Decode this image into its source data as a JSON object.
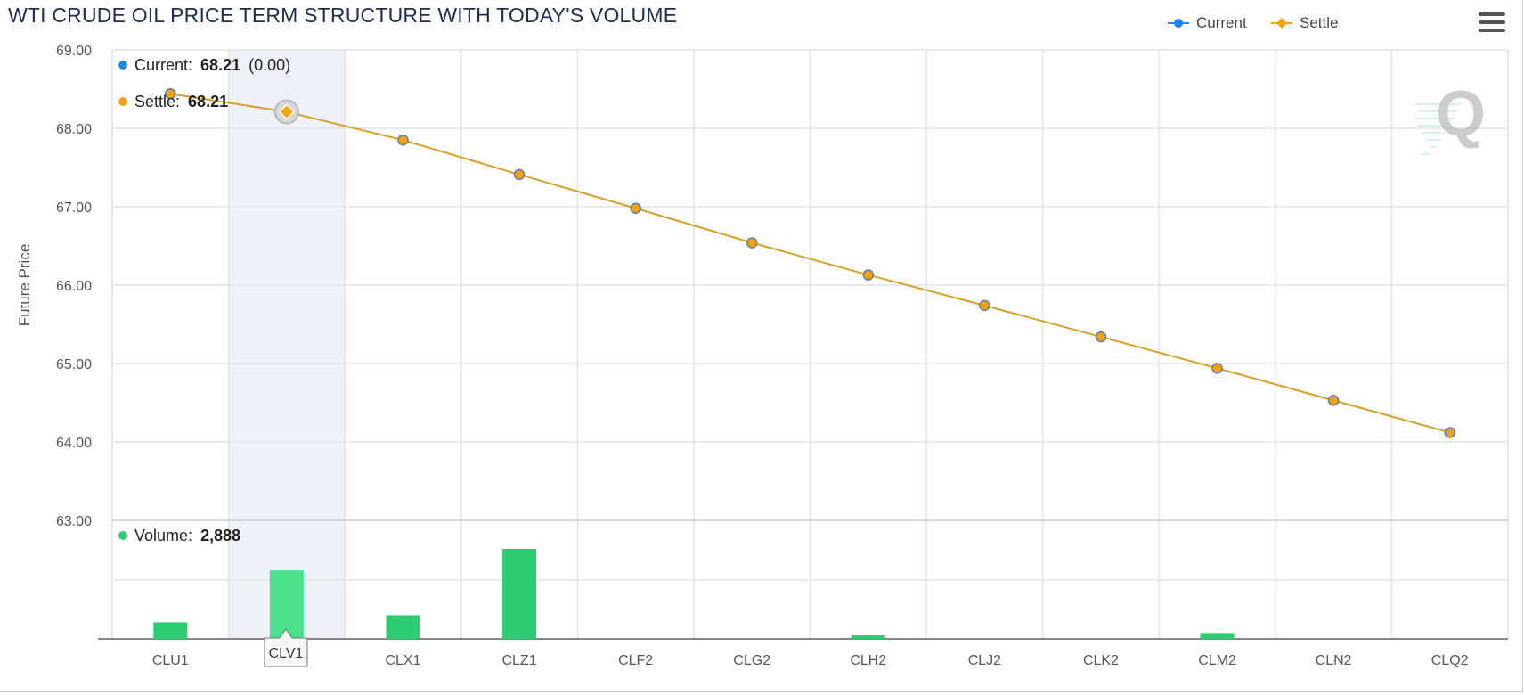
{
  "title": "WTI CRUDE OIL PRICE TERM STRUCTURE WITH TODAY'S VOLUME",
  "legend": [
    {
      "name": "Current",
      "color": "#1e88e5",
      "symbol": "circle"
    },
    {
      "name": "Settle",
      "color": "#f5a30a",
      "symbol": "diamond"
    }
  ],
  "menu_icon": "hamburger-icon",
  "watermark": "Q",
  "colors": {
    "line": "#d4a02a",
    "marker_fill": "#f5a30a",
    "marker_stroke": "#5b7fa6",
    "volume": "#2ecc71",
    "volume_hover": "#4be08c",
    "highlight": "#eef2f8"
  },
  "tooltip": {
    "current_label": "Current:",
    "current_value": "68.21",
    "current_change": "(0.00)",
    "settle_label": "Settle:",
    "settle_value": "68.21",
    "volume_label": "Volume:",
    "volume_value": "2,888",
    "category_label": "CLV1"
  },
  "chart_data": {
    "type": "line",
    "x_categories": [
      "CLU1",
      "CLV1",
      "CLX1",
      "CLZ1",
      "CLF2",
      "CLG2",
      "CLH2",
      "CLJ2",
      "CLK2",
      "CLM2",
      "CLN2",
      "CLQ2"
    ],
    "ylabel": "Future Price",
    "ylim": [
      63,
      69
    ],
    "y_ticks": [
      "69.00",
      "68.00",
      "67.00",
      "66.00",
      "65.00",
      "64.00",
      "63.00"
    ],
    "grid": true,
    "legend_position": "top-right",
    "highlighted_category": "CLV1",
    "series": [
      {
        "name": "Settle",
        "values": [
          68.44,
          68.21,
          67.85,
          67.41,
          66.98,
          66.54,
          66.13,
          65.74,
          65.34,
          64.94,
          64.53,
          64.12
        ]
      },
      {
        "name": "Volume",
        "type": "bar",
        "values": [
          700,
          2888,
          1000,
          3800,
          0,
          0,
          150,
          0,
          0,
          250,
          0,
          0
        ],
        "max": 5000
      }
    ]
  }
}
